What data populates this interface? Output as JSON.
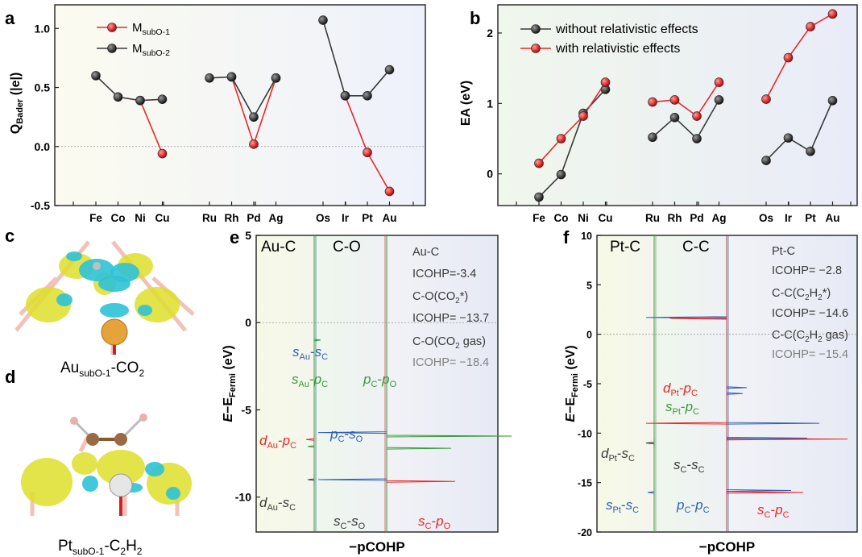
{
  "panels": {
    "a": {
      "letter": "a"
    },
    "b": {
      "letter": "b"
    },
    "c": {
      "letter": "c",
      "caption": "Au",
      "caption_sub": "subO-1",
      "caption_tail": "-CO",
      "caption_tail_sub": "2"
    },
    "d": {
      "letter": "d",
      "caption": "Pt",
      "caption_sub": "subO-1",
      "caption_tail": "-C",
      "caption_tail_sub": "2",
      "caption_tail2": "H",
      "caption_tail_sub2": "2"
    },
    "e": {
      "letter": "e"
    },
    "f": {
      "letter": "f"
    }
  },
  "colors": {
    "red": "#e8282b",
    "black": "#3a3a3a",
    "blue": "#2f5fb3",
    "green": "#3a9a3a",
    "gray": "#808080"
  },
  "chart_data": [
    {
      "id": "a",
      "type": "line",
      "ylabel": "Q",
      "ylabel_sub": "Bader",
      "ylabel_tail": " (|e|)",
      "ylim": [
        -0.5,
        1.2
      ],
      "yticks": [
        "-0.5",
        "0.0",
        "0.5",
        "1.0"
      ],
      "categories": [
        "Fe",
        "Co",
        "Ni",
        "Cu",
        "Ru",
        "Rh",
        "Pd",
        "Ag",
        "Os",
        "Ir",
        "Pt",
        "Au"
      ],
      "groups": [
        [
          0,
          1,
          2,
          3
        ],
        [
          4,
          5,
          6,
          7
        ],
        [
          8,
          9,
          10,
          11
        ]
      ],
      "legend": [
        {
          "name": "M",
          "sub": "subO-1",
          "color": "red"
        },
        {
          "name": "M",
          "sub": "subO-2",
          "color": "black"
        }
      ],
      "series": [
        {
          "name": "MsubO-1",
          "color": "red",
          "values": [
            null,
            null,
            0.39,
            -0.06,
            null,
            0.59,
            0.02,
            0.58,
            null,
            0.43,
            -0.05,
            -0.38
          ]
        },
        {
          "name": "MsubO-2",
          "color": "black",
          "values": [
            0.6,
            0.42,
            0.39,
            0.4,
            0.58,
            0.59,
            0.25,
            0.58,
            1.07,
            0.43,
            0.43,
            0.65
          ]
        }
      ]
    },
    {
      "id": "b",
      "type": "line",
      "ylabel": "EA (eV)",
      "ylim": [
        -0.45,
        2.4
      ],
      "yticks": [
        "0",
        "1",
        "2"
      ],
      "categories": [
        "Fe",
        "Co",
        "Ni",
        "Cu",
        "Ru",
        "Rh",
        "Pd",
        "Ag",
        "Os",
        "Ir",
        "Pt",
        "Au"
      ],
      "groups": [
        [
          0,
          1,
          2,
          3
        ],
        [
          4,
          5,
          6,
          7
        ],
        [
          8,
          9,
          10,
          11
        ]
      ],
      "legend": [
        {
          "name": "without relativistic effects",
          "color": "black"
        },
        {
          "name": "with relativistic effects",
          "color": "red"
        }
      ],
      "series": [
        {
          "name": "without relativistic effects",
          "color": "black",
          "values": [
            -0.33,
            -0.01,
            0.86,
            1.2,
            0.52,
            0.8,
            0.5,
            1.05,
            0.19,
            0.51,
            0.32,
            1.04
          ]
        },
        {
          "name": "with relativistic effects",
          "color": "red",
          "values": [
            0.15,
            0.5,
            0.82,
            1.3,
            1.02,
            1.05,
            0.82,
            1.3,
            1.06,
            1.65,
            2.09,
            2.27
          ]
        }
      ]
    },
    {
      "id": "e",
      "type": "line",
      "ylabel_pre": "E",
      "ylabel_mid": "−E",
      "ylabel_sub": "Fermi",
      "ylabel_tail": " (eV)",
      "xlabel": "−pCOHP",
      "ylim": [
        -12,
        5
      ],
      "yticks": [
        "5",
        "0",
        "-5",
        "-10"
      ],
      "column_titles": [
        "Au-C",
        "C-O"
      ],
      "info": [
        {
          "text": "Au-C",
          "color": "black"
        },
        {
          "text": "ICOHP=-3.4",
          "color": "black"
        },
        {
          "text": "C-O(CO",
          "sub": "2",
          "tail": "*)",
          "color": "black"
        },
        {
          "text": "ICOHP= −13.7",
          "color": "black"
        },
        {
          "text": "C-O(CO",
          "sub": "2",
          "tail": " gas)",
          "color": "black"
        },
        {
          "text": "ICOHP= −18.4",
          "color": "gray"
        }
      ],
      "annotations": [
        {
          "a": "s",
          "as": "Au",
          "b": "s",
          "bs": "C",
          "color": "blue"
        },
        {
          "a": "s",
          "as": "Au",
          "b": "p",
          "bs": "C",
          "color": "green"
        },
        {
          "a": "p",
          "as": "C",
          "b": "p",
          "bs": "O",
          "color": "green"
        },
        {
          "a": "d",
          "as": "Au",
          "b": "p",
          "bs": "C",
          "color": "red"
        },
        {
          "a": "p",
          "as": "C",
          "b": "s",
          "bs": "O",
          "color": "blue"
        },
        {
          "a": "d",
          "as": "Au",
          "b": "s",
          "bs": "C",
          "color": "black"
        },
        {
          "a": "s",
          "as": "C",
          "b": "s",
          "bs": "O",
          "color": "black"
        },
        {
          "a": "s",
          "as": "C",
          "b": "p",
          "bs": "O",
          "color": "red"
        }
      ]
    },
    {
      "id": "f",
      "type": "line",
      "ylabel_pre": "E",
      "ylabel_mid": "−E",
      "ylabel_sub": "Fermi",
      "ylabel_tail": " (eV)",
      "xlabel": "−pCOHP",
      "ylim": [
        -20,
        10
      ],
      "yticks": [
        "10",
        "5",
        "0",
        "-5",
        "-10",
        "-15",
        "-20"
      ],
      "column_titles": [
        "Pt-C",
        "C-C"
      ],
      "info": [
        {
          "text": "Pt-C",
          "color": "black"
        },
        {
          "text": "ICOHP= −2.8",
          "color": "black"
        },
        {
          "text": "C-C(C",
          "sub": "2",
          "mid": "H",
          "sub2": "2",
          "tail": "*)",
          "color": "black"
        },
        {
          "text": "ICOHP= −14.6",
          "color": "black"
        },
        {
          "text": "C-C(C",
          "sub": "2",
          "mid": "H",
          "sub2": "2",
          "tail": " gas)",
          "color": "black"
        },
        {
          "text": "ICOHP= −15.4",
          "color": "gray"
        }
      ],
      "annotations": [
        {
          "a": "d",
          "as": "Pt",
          "b": "p",
          "bs": "C",
          "color": "red"
        },
        {
          "a": "s",
          "as": "Pt",
          "b": "p",
          "bs": "C",
          "color": "green"
        },
        {
          "a": "d",
          "as": "Pt",
          "b": "s",
          "bs": "C",
          "color": "black"
        },
        {
          "a": "s",
          "as": "C",
          "b": "s",
          "bs": "C",
          "color": "black"
        },
        {
          "a": "s",
          "as": "Pt",
          "b": "s",
          "bs": "C",
          "color": "blue"
        },
        {
          "a": "p",
          "as": "C",
          "b": "p",
          "bs": "C",
          "color": "blue"
        },
        {
          "a": "s",
          "as": "C",
          "b": "p",
          "bs": "C",
          "color": "red"
        }
      ]
    }
  ]
}
